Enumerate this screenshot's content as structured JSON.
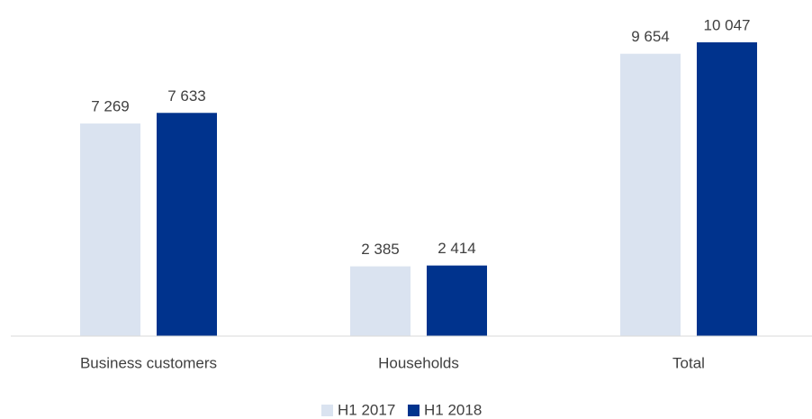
{
  "chart_data": {
    "type": "bar",
    "categories": [
      "Business customers",
      "Households",
      "Total"
    ],
    "series": [
      {
        "name": "H1 2017",
        "color": "#dae3f0",
        "values": [
          7269,
          2385,
          9654
        ],
        "value_labels": [
          "7 269",
          "2 385",
          "9 654"
        ]
      },
      {
        "name": "H1 2018",
        "color": "#00338d",
        "values": [
          7633,
          2414,
          10047
        ],
        "value_labels": [
          "7 633",
          "2 414",
          "10 047"
        ]
      }
    ],
    "ylim": [
      0,
      11000
    ],
    "grid": false,
    "legend": "bottom"
  }
}
